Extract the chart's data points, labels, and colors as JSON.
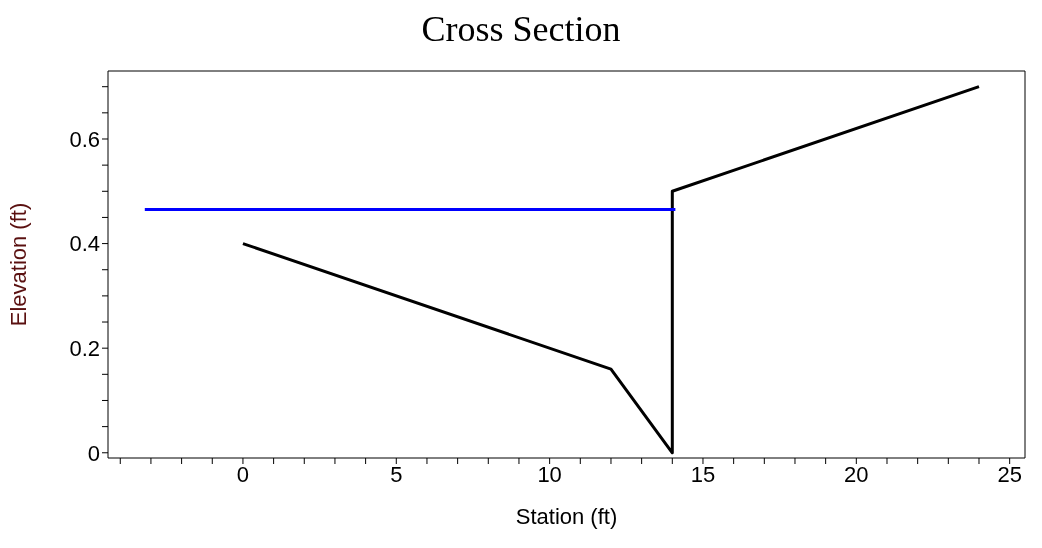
{
  "chart_data": {
    "type": "line",
    "title": "Cross Section",
    "xlabel": "Station (ft)",
    "ylabel": "Elevation (ft)",
    "series": [
      {
        "color": "#000000",
        "x": [
          0,
          12,
          14,
          14,
          24
        ],
        "values": [
          0.4,
          0.16,
          0,
          0.5,
          0.7
        ]
      },
      {
        "color": "#0000ff",
        "x": [
          -3.2,
          14.1
        ],
        "values": [
          0.465,
          0.465
        ]
      }
    ],
    "xlim": [
      -4.4,
      25.5
    ],
    "xticks": [
      {
        "value": -4,
        "label": null
      },
      {
        "value": -3,
        "label": null
      },
      {
        "value": -2,
        "label": null
      },
      {
        "value": -1,
        "label": null
      },
      0,
      {
        "value": 1,
        "label": null
      },
      {
        "value": 2,
        "label": null
      },
      {
        "value": 3,
        "label": null
      },
      {
        "value": 4,
        "label": null
      },
      5,
      {
        "value": 6,
        "label": null
      },
      {
        "value": 7,
        "label": null
      },
      {
        "value": 8,
        "label": null
      },
      {
        "value": 9,
        "label": null
      },
      10,
      {
        "value": 11,
        "label": null
      },
      {
        "value": 12,
        "label": null
      },
      {
        "value": 13,
        "label": null
      },
      {
        "value": 14,
        "label": null
      },
      15,
      {
        "value": 16,
        "label": null
      },
      {
        "value": 17,
        "label": null
      },
      {
        "value": 18,
        "label": null
      },
      {
        "value": 19,
        "label": null
      },
      20,
      {
        "value": 21,
        "label": null
      },
      {
        "value": 22,
        "label": null
      },
      {
        "value": 23,
        "label": null
      },
      {
        "value": 24,
        "label": null
      },
      25
    ],
    "ylim": [
      -0.01,
      0.73
    ],
    "yticks": [
      0,
      {
        "value": 0.05,
        "label": null
      },
      {
        "value": 0.1,
        "label": null
      },
      {
        "value": 0.15,
        "label": null
      },
      0.2,
      {
        "value": 0.25,
        "label": null
      },
      {
        "value": 0.3,
        "label": null
      },
      {
        "value": 0.35,
        "label": null
      },
      0.4,
      {
        "value": 0.45,
        "label": null
      },
      {
        "value": 0.5,
        "label": null
      },
      {
        "value": 0.55,
        "label": null
      },
      0.6,
      {
        "value": 0.65,
        "label": null
      },
      {
        "value": 0.7,
        "label": null
      }
    ],
    "marker": "none",
    "line_style": "solid",
    "grid": false
  }
}
